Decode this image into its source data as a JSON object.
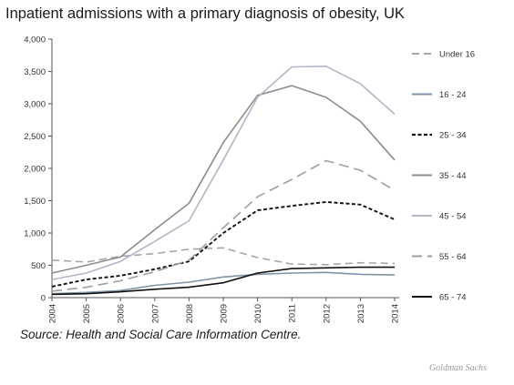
{
  "title": "Inpatient admissions with a primary diagnosis of obesity, UK",
  "source": "Source:  Health and Social Care Information Centre.",
  "credit": "Goldman Sachs",
  "chart_data": {
    "type": "line",
    "title": "Inpatient admissions with a primary diagnosis of obesity, UK",
    "xlabel": "",
    "ylabel": "",
    "x": [
      "2004",
      "2005",
      "2006",
      "2007",
      "2008",
      "2009",
      "2010",
      "2011",
      "2012",
      "2013",
      "2014"
    ],
    "ylim": [
      0,
      4000
    ],
    "yticks": [
      0,
      500,
      1000,
      1500,
      2000,
      2500,
      3000,
      3500,
      4000
    ],
    "ytick_labels": [
      "0",
      "500",
      "1,000",
      "1,500",
      "2,000",
      "2,500",
      "3,000",
      "3,500",
      "4,000"
    ],
    "grid": false,
    "legend_position": "right",
    "series": [
      {
        "name": "Under 16",
        "color": "#a6a6a6",
        "dash": "dashed",
        "width": 1.6,
        "values": [
          580,
          550,
          640,
          680,
          750,
          770,
          620,
          520,
          510,
          540,
          530
        ]
      },
      {
        "name": "16 - 24",
        "color": "#7f94a8",
        "dash": "solid",
        "width": 1.6,
        "values": [
          60,
          80,
          110,
          190,
          240,
          320,
          360,
          380,
          390,
          360,
          350
        ]
      },
      {
        "name": "25 - 34",
        "color": "#111111",
        "dash": "dotted",
        "width": 1.9,
        "values": [
          170,
          280,
          340,
          440,
          560,
          1000,
          1350,
          1420,
          1480,
          1440,
          1210
        ]
      },
      {
        "name": "35 - 44",
        "color": "#8c8c8c",
        "dash": "solid",
        "width": 1.6,
        "values": [
          380,
          500,
          630,
          1050,
          1460,
          2400,
          3130,
          3280,
          3100,
          2730,
          2130
        ]
      },
      {
        "name": "45 - 54",
        "color": "#b0b7c6",
        "dash": "solid",
        "width": 1.6,
        "values": [
          280,
          380,
          560,
          870,
          1190,
          2130,
          3100,
          3570,
          3580,
          3310,
          2840
        ]
      },
      {
        "name": "55 - 64",
        "color": "#9e9e9e",
        "dash": "longdash",
        "width": 1.6,
        "values": [
          100,
          160,
          260,
          400,
          580,
          1080,
          1560,
          1830,
          2120,
          1970,
          1660
        ]
      },
      {
        "name": "65 - 74",
        "color": "#111111",
        "dash": "solid",
        "width": 1.6,
        "values": [
          50,
          60,
          90,
          130,
          160,
          230,
          380,
          450,
          460,
          470,
          470
        ]
      }
    ]
  }
}
